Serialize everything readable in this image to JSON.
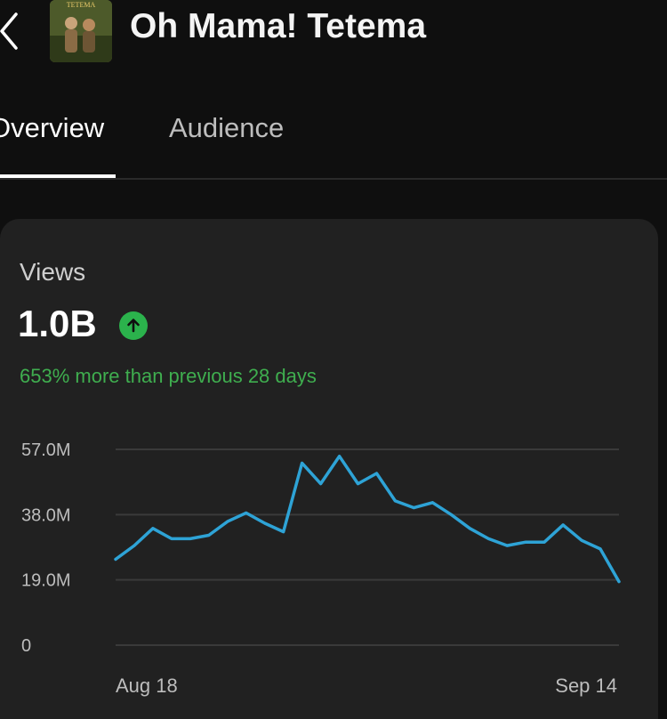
{
  "header": {
    "title": "Oh Mama! Tetema",
    "thumbnail_text": "TETEMA"
  },
  "tabs": [
    {
      "label": "Overview",
      "selected": true
    },
    {
      "label": "Audience",
      "selected": false
    }
  ],
  "metric": {
    "label": "Views",
    "value": "1.0B",
    "trend_icon": "arrow-up-icon",
    "trend_color": "#2bb24c",
    "comparison": "653% more than previous 28 days",
    "comparison_color": "#3fae4f"
  },
  "chart_data": {
    "type": "line",
    "series_color": "#2ea3d6",
    "grid": true,
    "ylim": [
      0,
      57
    ],
    "y_ticks": [
      "57.0M",
      "38.0M",
      "19.0M",
      "0"
    ],
    "y_tick_values": [
      57,
      38,
      19,
      0
    ],
    "x_tick_labels": [
      "Aug 18",
      "Sep 14"
    ],
    "x": [
      "Aug 18",
      "Aug 19",
      "Aug 20",
      "Aug 21",
      "Aug 22",
      "Aug 23",
      "Aug 24",
      "Aug 25",
      "Aug 26",
      "Aug 27",
      "Aug 28",
      "Aug 29",
      "Aug 30",
      "Aug 31",
      "Sep 1",
      "Sep 2",
      "Sep 3",
      "Sep 4",
      "Sep 5",
      "Sep 6",
      "Sep 7",
      "Sep 8",
      "Sep 9",
      "Sep 10",
      "Sep 11",
      "Sep 12",
      "Sep 13",
      "Sep 14"
    ],
    "values": [
      25,
      29,
      34,
      31,
      31,
      32,
      36,
      38.5,
      35.5,
      33,
      53,
      47,
      55,
      47,
      50,
      42,
      40,
      41.5,
      38,
      34,
      31,
      29,
      30,
      30,
      35,
      30.5,
      28,
      18.5
    ]
  }
}
